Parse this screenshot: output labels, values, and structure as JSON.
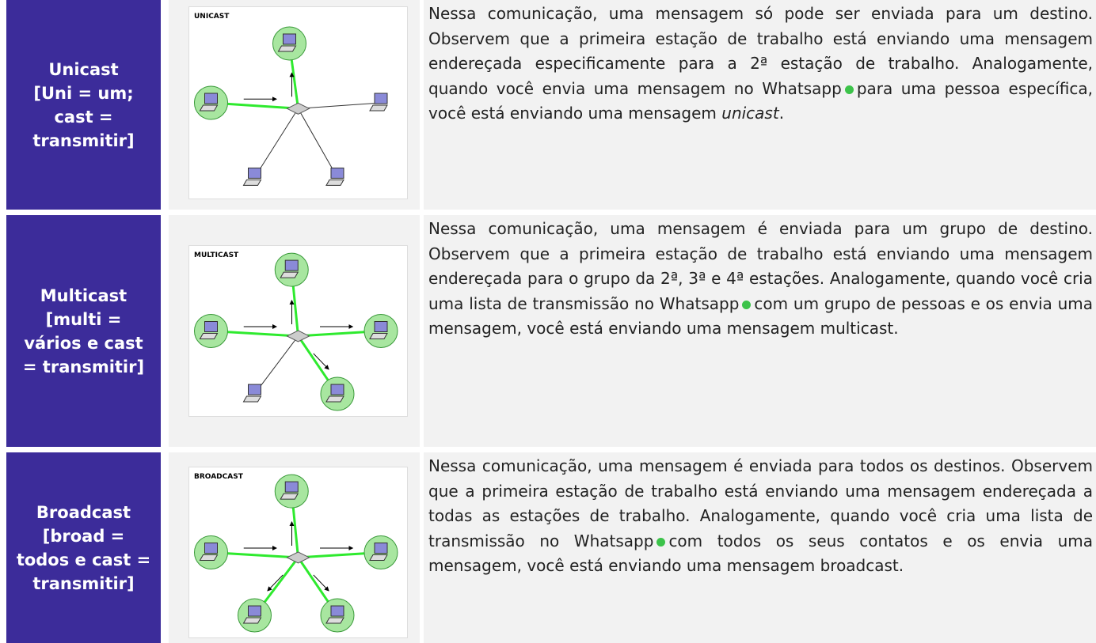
{
  "rows": [
    {
      "title": "Unicast",
      "subtitle": "[Uni = um; cast = transmitir]",
      "diagram_label": "UNICAST",
      "text_before_icon": "Nessa comunicação, uma mensagem só pode ser enviada para um destino. Observem que a primeira estação de trabalho está enviando uma mensagem endereçada especificamente para a 2ª estação de trabalho. Analogamente, quando você envia uma mensagem no Whatsapp",
      "text_after_icon": "para uma pessoa específica, você está enviando uma mensagem",
      "text_emphasis": "unicast",
      "text_end": "."
    },
    {
      "title": "Multicast",
      "subtitle": "[multi = vários e cast = transmitir]",
      "diagram_label": "MULTICAST",
      "text_before_icon": "Nessa comunicação, uma mensagem é enviada para um grupo de destino. Observem que a primeira estação de trabalho está enviando uma mensagem endereçada para o grupo da 2ª, 3ª e 4ª estações. Analogamente, quando você cria uma lista de transmissão no Whatsapp",
      "text_after_icon": "com um grupo de pessoas e os envia uma mensagem, você está enviando uma mensagem multicast."
    },
    {
      "title": "Broadcast",
      "subtitle": "[broad = todos e cast = transmitir]",
      "diagram_label": "BROADCAST",
      "text_before_icon": "Nessa comunicação, uma mensagem é enviada para todos os destinos. Observem que a primeira estação de trabalho está enviando uma mensagem endereçada a todas as estações de trabalho. Analogamente, quando você cria uma lista de transmissão no Whatsapp",
      "text_after_icon": "com todos os seus contatos e os envia uma mensagem, você está enviando uma mensagem broadcast."
    }
  ]
}
